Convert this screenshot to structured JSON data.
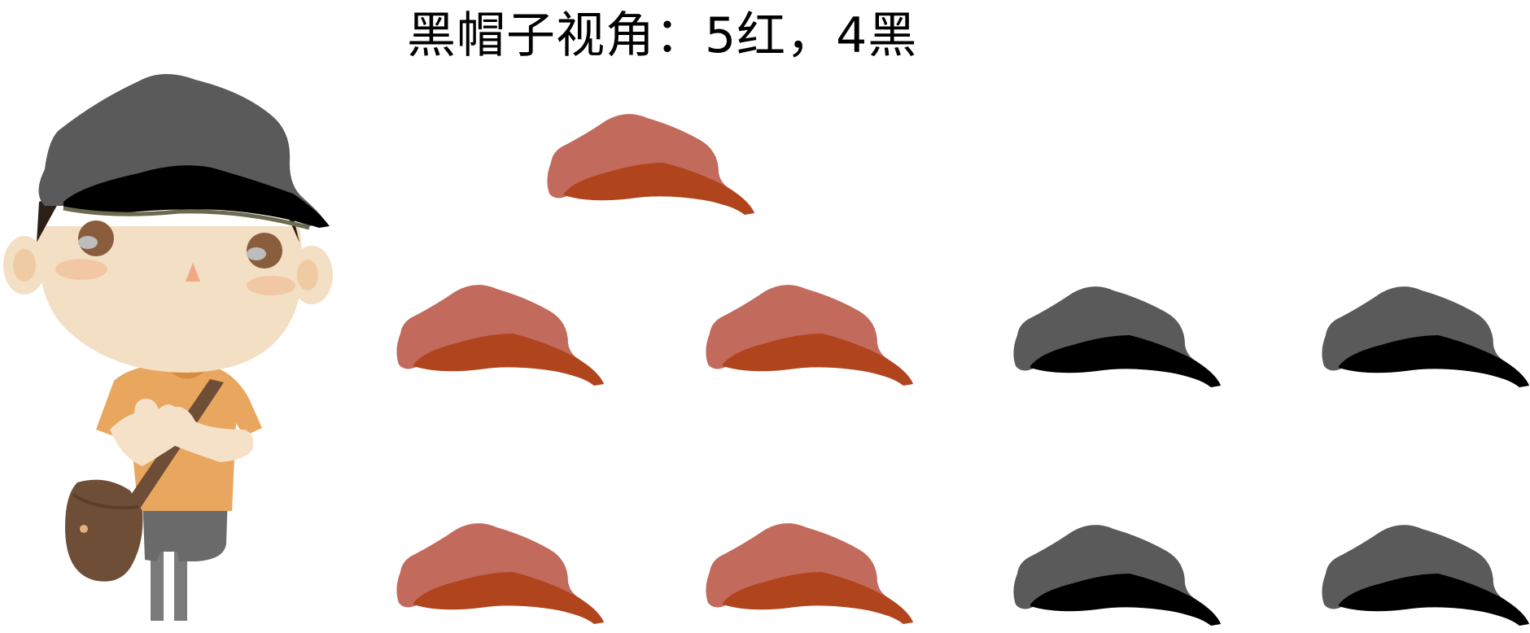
{
  "title": "黑帽子视角：5红，4黑",
  "colors": {
    "red_crown": "#C26A5C",
    "red_brim": "#B0441D",
    "black_crown": "#5A5A5A",
    "black_brim": "#000000",
    "skin": "#F2DFC4",
    "shirt": "#E9A65E",
    "bag": "#6E4E36",
    "pants": "#6A6A6A"
  },
  "observer": {
    "hat_color": "black"
  },
  "hats": [
    {
      "color": "red"
    },
    {
      "color": "red"
    },
    {
      "color": "red"
    },
    {
      "color": "black"
    },
    {
      "color": "black"
    },
    {
      "color": "red"
    },
    {
      "color": "red"
    },
    {
      "color": "black"
    },
    {
      "color": "black"
    }
  ]
}
